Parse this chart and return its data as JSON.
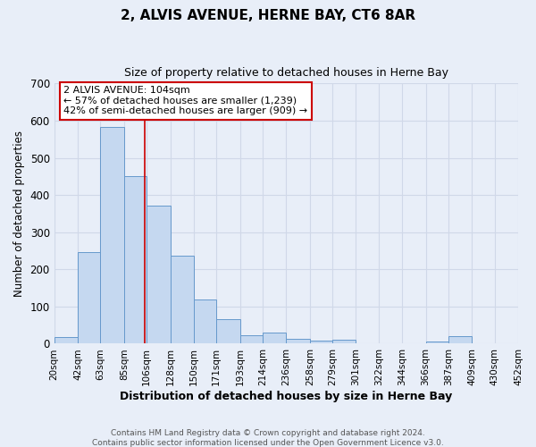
{
  "title": "2, ALVIS AVENUE, HERNE BAY, CT6 8AR",
  "subtitle": "Size of property relative to detached houses in Herne Bay",
  "xlabel": "Distribution of detached houses by size in Herne Bay",
  "ylabel": "Number of detached properties",
  "bins": [
    20,
    42,
    63,
    85,
    106,
    128,
    150,
    171,
    193,
    214,
    236,
    258,
    279,
    301,
    322,
    344,
    366,
    387,
    409,
    430,
    452
  ],
  "counts": [
    18,
    247,
    583,
    450,
    372,
    236,
    120,
    67,
    22,
    30,
    12,
    8,
    10,
    0,
    0,
    0,
    5,
    20,
    0,
    0
  ],
  "bar_color": "#c5d8f0",
  "bar_edge_color": "#6699cc",
  "vline_x": 104,
  "vline_color": "#cc0000",
  "ylim": [
    0,
    700
  ],
  "yticks": [
    0,
    100,
    200,
    300,
    400,
    500,
    600,
    700
  ],
  "annotation_title": "2 ALVIS AVENUE: 104sqm",
  "annotation_line1": "← 57% of detached houses are smaller (1,239)",
  "annotation_line2": "42% of semi-detached houses are larger (909) →",
  "annotation_box_color": "#ffffff",
  "annotation_box_edge": "#cc0000",
  "footer1": "Contains HM Land Registry data © Crown copyright and database right 2024.",
  "footer2": "Contains public sector information licensed under the Open Government Licence v3.0.",
  "background_color": "#e8eef8",
  "grid_color": "#d0d8e8"
}
